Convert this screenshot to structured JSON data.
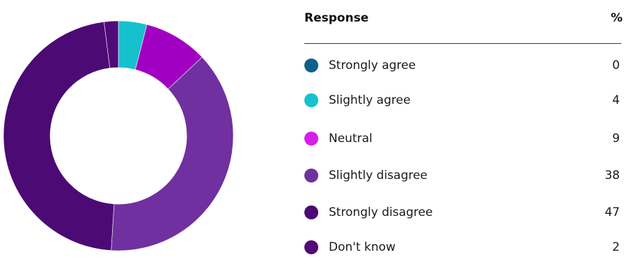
{
  "chart_data": {
    "type": "pie",
    "variant": "donut",
    "column_headers": [
      "Response",
      "%"
    ],
    "categories": [
      "Strongly agree",
      "Slightly agree",
      "Neutral",
      "Slightly disagree",
      "Strongly disagree",
      "Don't know"
    ],
    "values": [
      0,
      4,
      9,
      38,
      47,
      2
    ],
    "displayed_values": [
      "0",
      "4",
      "9",
      "38",
      "47",
      "2"
    ],
    "colors": [
      "#0F5F8C",
      "#15C1CC",
      "#D41FE8",
      "#7030A0",
      "#4B0A74",
      "#520A78"
    ],
    "slice_colors": [
      "#0F5F8C",
      "#15C1CC",
      "#A100C2",
      "#7030A0",
      "#4B0A74",
      "#520A78"
    ],
    "legend_placement": "right",
    "start_angle_deg": 0,
    "direction": "clockwise"
  }
}
